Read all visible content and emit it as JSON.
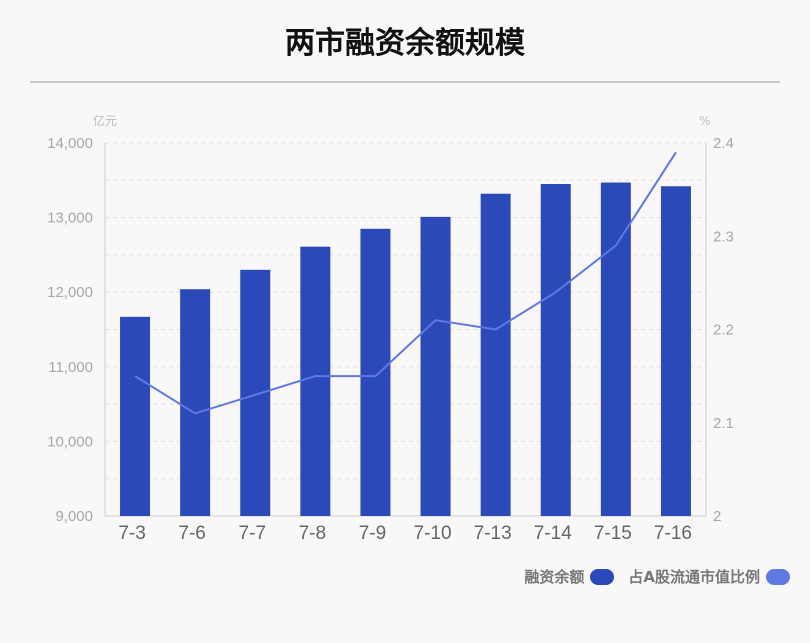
{
  "title": "两市融资余额规模",
  "chart_data": {
    "type": "bar",
    "categories": [
      "7-3",
      "7-6",
      "7-7",
      "7-8",
      "7-9",
      "7-10",
      "7-13",
      "7-14",
      "7-15",
      "7-16"
    ],
    "series": [
      {
        "name": "融资余额",
        "type": "bar",
        "axis": "left",
        "values": [
          11670,
          12040,
          12300,
          12610,
          12850,
          13010,
          13320,
          13450,
          13470,
          13420
        ],
        "color": "#2b49b8"
      },
      {
        "name": "占A股流通市值比例",
        "type": "line",
        "axis": "right",
        "values": [
          2.15,
          2.11,
          2.13,
          2.15,
          2.15,
          2.21,
          2.2,
          2.24,
          2.29,
          2.39
        ],
        "color": "#5f79e3"
      }
    ],
    "y_left": {
      "unit": "亿元",
      "ylim": [
        9000,
        14000
      ],
      "ticks": [
        "9,000",
        "10,000",
        "11,000",
        "12,000",
        "13,000",
        "14,000"
      ]
    },
    "y_right": {
      "unit": "%",
      "ylim": [
        2.0,
        2.4
      ],
      "ticks": [
        "2",
        "2.1",
        "2.2",
        "2.3",
        "2.4"
      ]
    },
    "grid": true,
    "legend_position": "bottom-right"
  },
  "legend": {
    "bar_label": "融资余额",
    "line_label": "占A股流通市值比例"
  }
}
